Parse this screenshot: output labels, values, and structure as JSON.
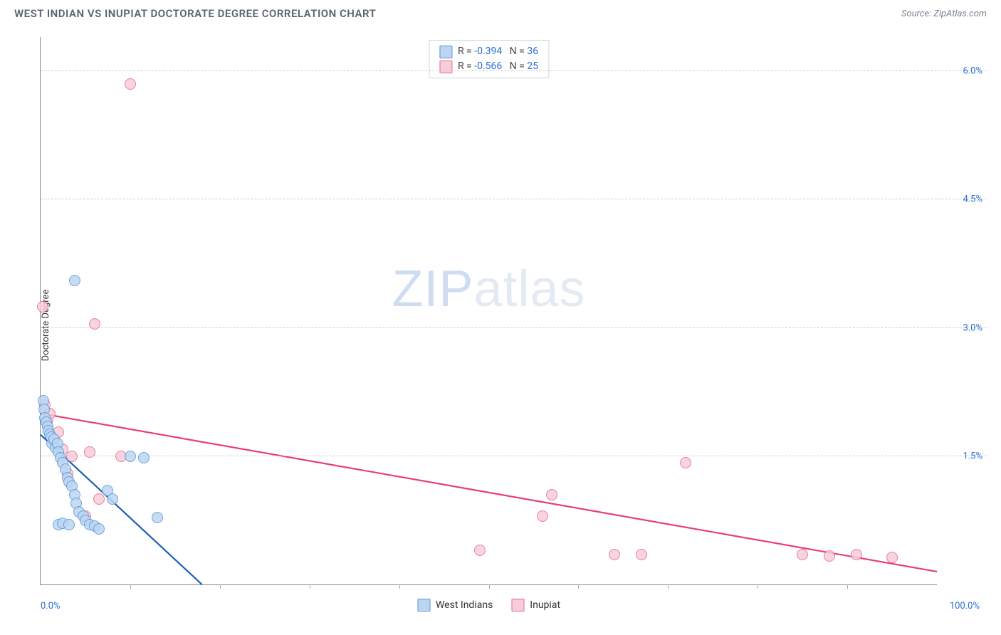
{
  "header": {
    "title": "WEST INDIAN VS INUPIAT DOCTORATE DEGREE CORRELATION CHART",
    "source": "Source: ZipAtlas.com"
  },
  "ylabel": "Doctorate Degree",
  "watermark": {
    "bold": "ZIP",
    "light": "atlas"
  },
  "chart": {
    "type": "scatter",
    "xlim": [
      0,
      100
    ],
    "ylim": [
      0,
      6.4
    ],
    "xticks_minor": [
      10,
      20,
      30,
      40,
      50,
      60,
      70,
      80,
      90
    ],
    "xticks_labels": [
      {
        "x": 0,
        "label": "0.0%",
        "align": "left"
      },
      {
        "x": 100,
        "label": "100.0%",
        "align": "right"
      }
    ],
    "yticks": [
      {
        "y": 1.5,
        "label": "1.5%"
      },
      {
        "y": 3.0,
        "label": "3.0%"
      },
      {
        "y": 4.5,
        "label": "4.5%"
      },
      {
        "y": 6.0,
        "label": "6.0%"
      }
    ],
    "grid_color": "#cccccc",
    "background_color": "#ffffff",
    "marker_radius": 8,
    "marker_stroke_width": 1.2,
    "series": [
      {
        "name": "West Indians",
        "fill": "#bcd6f2",
        "stroke": "#5a96d8",
        "R": "-0.394",
        "N": "36",
        "trend": {
          "x1": 0,
          "y1": 1.75,
          "x2": 18,
          "y2": 0.0,
          "color": "#1b5fb4",
          "width": 2.2
        },
        "points": [
          {
            "x": 0.3,
            "y": 2.15
          },
          {
            "x": 0.4,
            "y": 2.05
          },
          {
            "x": 0.5,
            "y": 1.95
          },
          {
            "x": 0.6,
            "y": 1.9
          },
          {
            "x": 0.8,
            "y": 1.85
          },
          {
            "x": 0.9,
            "y": 1.8
          },
          {
            "x": 1.0,
            "y": 1.76
          },
          {
            "x": 1.2,
            "y": 1.72
          },
          {
            "x": 1.3,
            "y": 1.65
          },
          {
            "x": 1.5,
            "y": 1.7
          },
          {
            "x": 1.7,
            "y": 1.6
          },
          {
            "x": 1.9,
            "y": 1.65
          },
          {
            "x": 2.0,
            "y": 1.55
          },
          {
            "x": 2.2,
            "y": 1.48
          },
          {
            "x": 2.5,
            "y": 1.42
          },
          {
            "x": 2.8,
            "y": 1.35
          },
          {
            "x": 3.0,
            "y": 1.25
          },
          {
            "x": 3.2,
            "y": 1.2
          },
          {
            "x": 3.5,
            "y": 1.15
          },
          {
            "x": 3.8,
            "y": 1.05
          },
          {
            "x": 4.0,
            "y": 0.95
          },
          {
            "x": 4.3,
            "y": 0.85
          },
          {
            "x": 4.8,
            "y": 0.8
          },
          {
            "x": 5.0,
            "y": 0.75
          },
          {
            "x": 5.5,
            "y": 0.7
          },
          {
            "x": 6.0,
            "y": 0.68
          },
          {
            "x": 6.5,
            "y": 0.65
          },
          {
            "x": 7.5,
            "y": 1.1
          },
          {
            "x": 8.0,
            "y": 1.0
          },
          {
            "x": 10.0,
            "y": 1.5
          },
          {
            "x": 11.5,
            "y": 1.48
          },
          {
            "x": 13.0,
            "y": 0.78
          },
          {
            "x": 3.8,
            "y": 3.55
          },
          {
            "x": 2.0,
            "y": 0.7
          },
          {
            "x": 2.5,
            "y": 0.72
          },
          {
            "x": 3.2,
            "y": 0.7
          }
        ]
      },
      {
        "name": "Inupiat",
        "fill": "#f6cdd9",
        "stroke": "#e46a8d",
        "R": "-0.566",
        "N": "25",
        "trend": {
          "x1": 0,
          "y1": 2.0,
          "x2": 100,
          "y2": 0.15,
          "color": "#e83e73",
          "width": 2.2
        },
        "points": [
          {
            "x": 0.2,
            "y": 3.25
          },
          {
            "x": 0.5,
            "y": 2.1
          },
          {
            "x": 0.8,
            "y": 1.92
          },
          {
            "x": 1.0,
            "y": 2.0
          },
          {
            "x": 1.5,
            "y": 1.7
          },
          {
            "x": 2.0,
            "y": 1.78
          },
          {
            "x": 2.5,
            "y": 1.58
          },
          {
            "x": 3.0,
            "y": 1.3
          },
          {
            "x": 3.5,
            "y": 1.5
          },
          {
            "x": 5.5,
            "y": 1.55
          },
          {
            "x": 5.0,
            "y": 0.8
          },
          {
            "x": 6.0,
            "y": 3.05
          },
          {
            "x": 6.5,
            "y": 1.0
          },
          {
            "x": 9.0,
            "y": 1.5
          },
          {
            "x": 10.0,
            "y": 5.85
          },
          {
            "x": 49.0,
            "y": 0.4
          },
          {
            "x": 56.0,
            "y": 0.8
          },
          {
            "x": 57.0,
            "y": 1.05
          },
          {
            "x": 64.0,
            "y": 0.35
          },
          {
            "x": 67.0,
            "y": 0.35
          },
          {
            "x": 72.0,
            "y": 1.42
          },
          {
            "x": 85.0,
            "y": 0.35
          },
          {
            "x": 88.0,
            "y": 0.33
          },
          {
            "x": 91.0,
            "y": 0.35
          },
          {
            "x": 95.0,
            "y": 0.32
          }
        ]
      }
    ]
  },
  "bottom_legend": [
    {
      "label": "West Indians",
      "fill": "#bcd6f2",
      "stroke": "#5a96d8"
    },
    {
      "label": "Inupiat",
      "fill": "#f6cdd9",
      "stroke": "#e46a8d"
    }
  ]
}
